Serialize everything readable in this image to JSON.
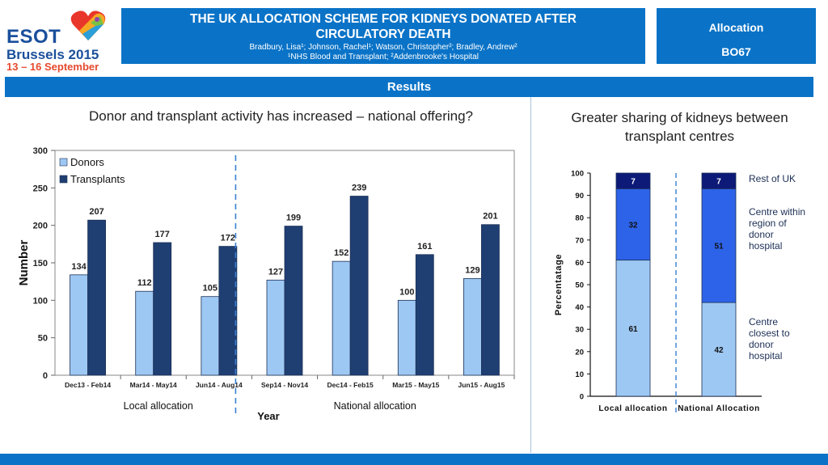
{
  "logo": {
    "line1": "ESOT",
    "line2": "Brussels 2015",
    "line3": "13 – 16 September",
    "colors": [
      "#e9362b",
      "#f7a823",
      "#7ac143",
      "#2a9fd8",
      "#8e44ad"
    ]
  },
  "header": {
    "title": "THE UK ALLOCATION SCHEME FOR KIDNEYS DONATED AFTER CIRCULATORY DEATH",
    "authors": "Bradbury, Lisa¹; Johnson, Rachel¹; Watson, Christopher²; Bradley, Andrew²",
    "affiliations": "¹NHS Blood and Transplant; ²Addenbrooke's Hospital",
    "category": "Allocation",
    "code": "BO67"
  },
  "section_bar": "Results",
  "left_panel": {
    "heading": "Donor and transplant activity has increased – national offering?"
  },
  "right_panel": {
    "heading": "Greater sharing of kidneys between transplant centres"
  },
  "colors": {
    "brand_blue": "#0a73c7",
    "donors": "#9dc8f3",
    "transplants": "#1f3f73",
    "dark_navy": "#0d1a78",
    "mid_blue": "#2d63e8",
    "light_blue": "#9dc8f3"
  },
  "chart_data": [
    {
      "type": "bar",
      "categories": [
        "Dec13 - Feb14",
        "Mar14 - May14",
        "Jun14 - Aug14",
        "Sep14 - Nov14",
        "Dec14 - Feb15",
        "Mar15 - May15",
        "Jun15 - Aug15"
      ],
      "series": [
        {
          "name": "Donors",
          "values": [
            134,
            112,
            105,
            127,
            152,
            100,
            129
          ]
        },
        {
          "name": "Transplants",
          "values": [
            207,
            177,
            172,
            199,
            239,
            161,
            201
          ]
        }
      ],
      "xlabel": "Year",
      "ylabel": "Number",
      "ylim": [
        0,
        300
      ],
      "yticks": [
        0,
        50,
        100,
        150,
        200,
        250,
        300
      ],
      "legend": "top-left",
      "grid": false,
      "annotations": [
        "Local allocation",
        "National allocation"
      ]
    },
    {
      "type": "bar",
      "stacked": true,
      "categories": [
        "Local allocation",
        "National Allocation"
      ],
      "series": [
        {
          "name": "Centre closest to donor hospital",
          "values": [
            61,
            42
          ]
        },
        {
          "name": "Centre within region of donor hospital",
          "values": [
            32,
            51
          ]
        },
        {
          "name": "Rest of UK",
          "values": [
            7,
            7
          ]
        }
      ],
      "ylabel": "Percentatage",
      "ylim": [
        0,
        100
      ],
      "yticks": [
        0,
        10,
        20,
        30,
        40,
        50,
        60,
        70,
        80,
        90,
        100
      ],
      "legend": "right",
      "grid": false
    }
  ]
}
